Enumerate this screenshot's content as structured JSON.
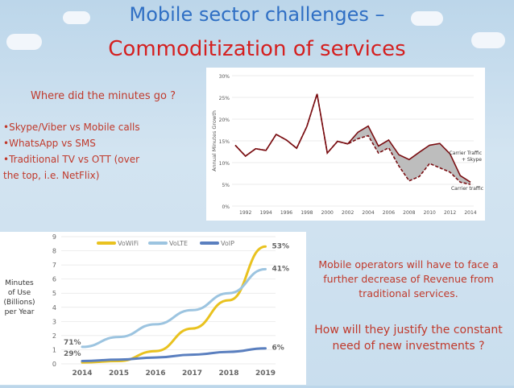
{
  "title": {
    "line1": "Mobile sector challenges –",
    "line2": "Commoditization of services"
  },
  "left_panel": {
    "question": "Where did the minutes go ?",
    "bullets": [
      "•Skype/Viber vs Mobile calls",
      "•WhatsApp vs SMS",
      "•Traditional TV vs OTT (over",
      "the top, i.e. NetFlix)"
    ]
  },
  "right_panel": {
    "statement": [
      "Mobile operators will have to face a",
      "further decrease of Revenue from",
      "traditional services."
    ],
    "question": [
      "How will they justify the constant",
      "need of new investments ?"
    ]
  },
  "colors": {
    "title_blue": "#2f6fc4",
    "accent_red": "#c0392b",
    "title_red": "#d42020"
  },
  "chart_data": [
    {
      "type": "line",
      "title": "",
      "ylabel": "Annual Minutes Growth",
      "x": [
        1991,
        1992,
        1993,
        1994,
        1995,
        1996,
        1997,
        1998,
        1999,
        2000,
        2001,
        2002,
        2003,
        2004,
        2005,
        2006,
        2007,
        2008,
        2009,
        2010,
        2011,
        2012,
        2013,
        2014
      ],
      "x_ticks": [
        "1992",
        "1994",
        "1996",
        "1998",
        "2000",
        "2002",
        "2004",
        "2006",
        "2008",
        "2010",
        "2012",
        "2014"
      ],
      "y_ticks": [
        "0%",
        "5%",
        "10%",
        "15%",
        "20%",
        "25%",
        "30%"
      ],
      "ylim": [
        0,
        30
      ],
      "series": [
        {
          "name": "Carrier Traffic + Skype",
          "label_lines": [
            "Carrier Traffic",
            "+ Skype"
          ],
          "color": "#7a0e12",
          "values": [
            14,
            11.5,
            13.2,
            12.8,
            16.5,
            15.2,
            13.3,
            18.3,
            25.8,
            12.2,
            14.9,
            14.3,
            17,
            18.4,
            13.8,
            15.2,
            11.8,
            10.7,
            12.4,
            14,
            14.4,
            12,
            7,
            5.5
          ]
        },
        {
          "name": "Carrier traffic",
          "label_lines": [
            "Carrier traffic"
          ],
          "color": "#7a0e12",
          "values": [
            14,
            11.5,
            13.2,
            12.8,
            16.5,
            15.2,
            13.3,
            18.3,
            25.8,
            12.2,
            14.9,
            14.3,
            15.5,
            16.2,
            12.2,
            13.4,
            9.2,
            5.8,
            6.8,
            9.8,
            8.8,
            7.8,
            5.5,
            5
          ]
        }
      ]
    },
    {
      "type": "line",
      "ylabel_lines": [
        "Minutes",
        "of Use",
        "(Billions)",
        "per Year"
      ],
      "x": [
        "2014",
        "2015",
        "2016",
        "2017",
        "2018",
        "2019"
      ],
      "ylim": [
        0,
        9
      ],
      "y_ticks": [
        "0",
        "1",
        "2",
        "3",
        "4",
        "5",
        "6",
        "7",
        "8",
        "9"
      ],
      "series": [
        {
          "name": "VoWiFi",
          "color": "#e9c21f",
          "values": [
            0.1,
            0.2,
            0.9,
            2.5,
            4.5,
            8.3
          ],
          "end_label": "53%"
        },
        {
          "name": "VoLTE",
          "color": "#9cc4e0",
          "values": [
            1.2,
            1.9,
            2.8,
            3.8,
            5.0,
            6.7
          ],
          "end_label": "41%"
        },
        {
          "name": "VoIP",
          "color": "#5a7fbf",
          "values": [
            0.2,
            0.3,
            0.45,
            0.65,
            0.85,
            1.1
          ],
          "end_label": "6%"
        }
      ],
      "start_labels": [
        "71%",
        "29%"
      ]
    }
  ]
}
